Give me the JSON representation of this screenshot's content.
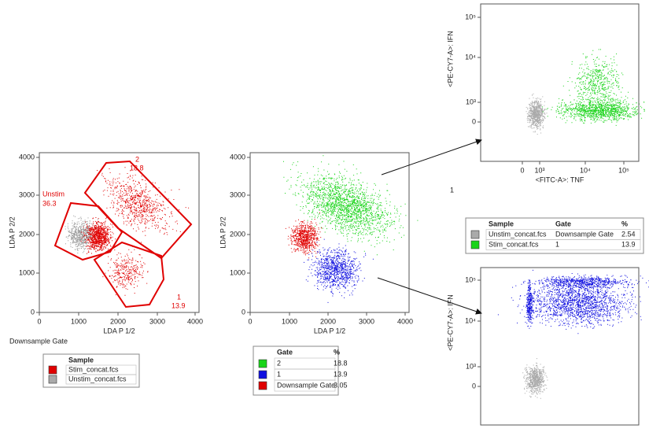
{
  "plots": [
    {
      "x_label": "LDA P 1/2",
      "y_label": "LDA P 2/2",
      "xticks": [
        "0",
        "1000",
        "2000",
        "3000",
        "4000"
      ],
      "yticks": [
        "0",
        "1000",
        "2000",
        "3000",
        "4000"
      ],
      "caption": "Downsample Gate",
      "gates": [
        {
          "name": "2",
          "percent": "18.8"
        },
        {
          "name": "Unstim",
          "percent": "36.3"
        },
        {
          "name": "1",
          "percent": "13.9"
        }
      ]
    },
    {
      "x_label": "LDA P 1/2",
      "y_label": "LDA P 2/2",
      "xticks": [
        "0",
        "1000",
        "2000",
        "3000",
        "4000"
      ],
      "yticks": [
        "0",
        "1000",
        "2000",
        "3000",
        "4000"
      ]
    },
    {
      "x_label": "<FITC-A>: TNF",
      "y_label": "<PE-CY7-A>: IFN",
      "xticks": [
        "0",
        "10³",
        "10⁴",
        "10⁵"
      ],
      "yticks": [
        "0",
        "10³",
        "10⁴",
        "10⁵"
      ],
      "caption": "1"
    },
    {
      "y_label": "<PE-CY7-A>: IFN",
      "yticks": [
        "0",
        "10³",
        "10⁴",
        "10⁵"
      ]
    }
  ],
  "legend_sample": {
    "headers": [
      "Sample"
    ],
    "rows": [
      [
        "Stim_concat.fcs"
      ],
      [
        "Unstim_concat.fcs"
      ]
    ]
  },
  "legend_gate": {
    "headers": [
      "Gate",
      "%"
    ],
    "rows": [
      [
        "2",
        "18.8"
      ],
      [
        "1",
        "13.9"
      ],
      [
        "Downsample Gate",
        "3.05"
      ]
    ]
  },
  "legend_overlay": {
    "headers": [
      "Sample",
      "Gate",
      "%"
    ],
    "rows": [
      [
        "Unstim_concat.fcs",
        "Downsample Gate",
        "2.54"
      ],
      [
        "Stim_concat.fcs",
        "1",
        "13.9"
      ]
    ]
  }
}
